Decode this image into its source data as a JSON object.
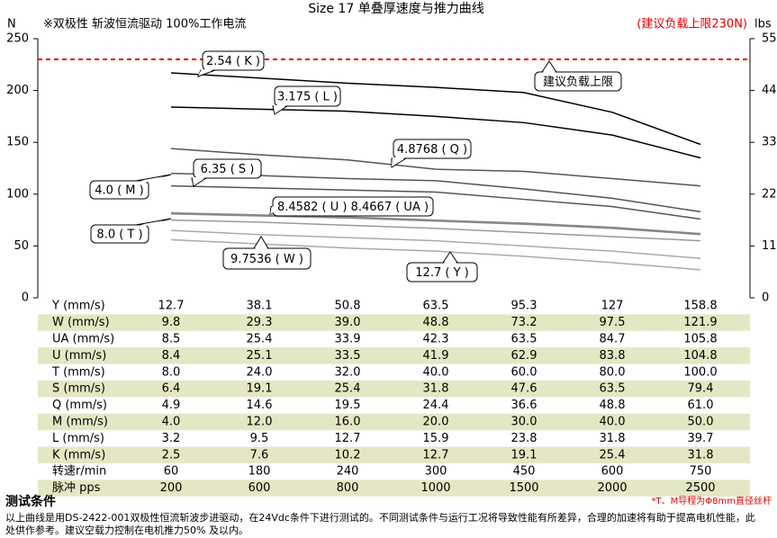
{
  "chart_data": {
    "type": "line",
    "title": "Size 17 单叠厚速度与推力曲线",
    "subtitle": "※双极性 斩波恒流驱动 100%工作电流",
    "note": "(建议负载上限230N)",
    "y_label": "N",
    "y2_label": "lbs",
    "categories": [
      null,
      null,
      null,
      null,
      null,
      null,
      null
    ],
    "ylim": [
      0,
      250
    ],
    "yticks": [
      0,
      50,
      100,
      150,
      200,
      250
    ],
    "y2lim": [
      0,
      55
    ],
    "y2ticks": [
      0,
      11,
      22,
      33,
      44,
      55
    ],
    "limit": 230,
    "limit_color": "#e00000",
    "series": [
      {
        "color": "#000000",
        "values": [
          217,
          212,
          207,
          203,
          198,
          179,
          148
        ]
      },
      {
        "color": "#000000",
        "values": [
          184,
          182,
          180,
          175,
          169,
          157,
          135
        ]
      },
      {
        "color": "#555555",
        "values": [
          144,
          138,
          133,
          124,
          122,
          115,
          108
        ]
      },
      {
        "color": "#555555",
        "values": [
          120,
          118,
          115,
          113,
          105,
          96,
          83
        ]
      },
      {
        "color": "#555555",
        "values": [
          108,
          106,
          104,
          102,
          95,
          88,
          76
        ]
      },
      {
        "color": "#888888",
        "values": [
          82,
          80,
          78,
          75,
          72,
          68,
          62
        ]
      },
      {
        "color": "#888888",
        "values": [
          81,
          79,
          77,
          74,
          71,
          67,
          61
        ]
      },
      {
        "color": "#999999",
        "values": [
          75,
          73,
          70,
          67,
          63,
          59,
          55
        ]
      },
      {
        "color": "#aaaaaa",
        "values": [
          65,
          61,
          58,
          55,
          50,
          45,
          38
        ]
      },
      {
        "color": "#aaaaaa",
        "values": [
          56,
          52,
          48,
          45,
          40,
          34,
          27
        ]
      }
    ],
    "annotations": [
      "2.54 ( K )",
      "3.175 ( L )",
      "4.8768 ( Q )",
      "6.35 ( S )",
      "4.0 ( M )",
      "8.4582 ( U ) 8.4667 ( UA )",
      "8.0 ( T )",
      "9.7536 ( W )",
      "12.7 ( Y )",
      "建议负载上限"
    ]
  },
  "table": {
    "rows": [
      [
        "Y (mm/s)",
        "12.7",
        "38.1",
        "50.8",
        "63.5",
        "95.3",
        "127",
        "158.8"
      ],
      [
        "W (mm/s)",
        "9.8",
        "29.3",
        "39.0",
        "48.8",
        "73.2",
        "97.5",
        "121.9"
      ],
      [
        "UA (mm/s)",
        "8.5",
        "25.4",
        "33.9",
        "42.3",
        "63.5",
        "84.7",
        "105.8"
      ],
      [
        "U (mm/s)",
        "8.4",
        "25.1",
        "33.5",
        "41.9",
        "62.9",
        "83.8",
        "104.8"
      ],
      [
        "T (mm/s)",
        "8.0",
        "24.0",
        "32.0",
        "40.0",
        "60.0",
        "80.0",
        "100.0"
      ],
      [
        "S (mm/s)",
        "6.4",
        "19.1",
        "25.4",
        "31.8",
        "47.6",
        "63.5",
        "79.4"
      ],
      [
        "Q (mm/s)",
        "4.9",
        "14.6",
        "19.5",
        "24.4",
        "36.6",
        "48.8",
        "61.0"
      ],
      [
        "M (mm/s)",
        "4.0",
        "12.0",
        "16.0",
        "20.0",
        "30.0",
        "40.0",
        "50.0"
      ],
      [
        "L (mm/s)",
        "3.2",
        "9.5",
        "12.7",
        "15.9",
        "23.8",
        "31.8",
        "39.7"
      ],
      [
        "K (mm/s)",
        "2.5",
        "7.6",
        "10.2",
        "12.7",
        "19.1",
        "25.4",
        "31.8"
      ],
      [
        "转速r/min",
        "60",
        "180",
        "240",
        "300",
        "450",
        "600",
        "750"
      ],
      [
        "脉冲 pps",
        "200",
        "600",
        "800",
        "1000",
        "1500",
        "2000",
        "2500"
      ]
    ]
  },
  "footer": {
    "heading": "测试条件",
    "note": "*T、M导程为Φ8mm直径丝杆",
    "text": "以上曲线是用DS-2422-001双极性恒流斩波步进驱动，在24Vdc条件下进行测试的。不同测试条件与运行工况将导致性能有所差异，合理的加速将有助于提高电机性能，此处供作参考。建议空载力控制在电机推力50% 及以内。"
  }
}
